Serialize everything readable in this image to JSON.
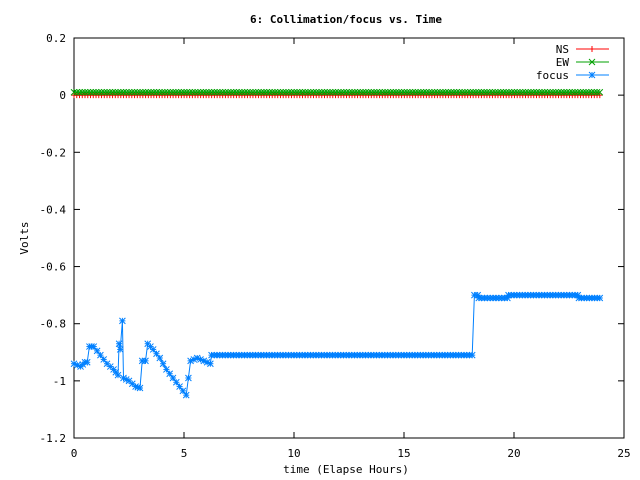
{
  "chart_data": {
    "type": "line",
    "title": "6: Collimation/focus vs. Time",
    "xlabel": "time (Elapse Hours)",
    "ylabel": "Volts",
    "xlim": [
      0,
      25
    ],
    "ylim": [
      -1.2,
      0.2
    ],
    "xticks": [
      0,
      5,
      10,
      15,
      20,
      25
    ],
    "yticks": [
      0.2,
      0,
      -0.2,
      -0.4,
      -0.6,
      -0.8,
      -1,
      -1.2
    ],
    "xtick_labels": [
      "0",
      "5",
      "10",
      "15",
      "20",
      "25"
    ],
    "ytick_labels": [
      "0.2",
      "0",
      "-0.2",
      "-0.4",
      "-0.6",
      "-0.8",
      "-1",
      "-1.2"
    ],
    "grid": false,
    "legend_position": "top-right",
    "series": [
      {
        "name": "NS",
        "color": "#ff0000",
        "marker": "plus",
        "points": [
          [
            0.0,
            0.0
          ],
          [
            23.9,
            0.0
          ]
        ]
      },
      {
        "name": "EW",
        "color": "#00a000",
        "marker": "cross",
        "points": [
          [
            0.0,
            0.01
          ],
          [
            23.9,
            0.01
          ]
        ]
      },
      {
        "name": "focus",
        "color": "#0080ff",
        "marker": "star",
        "points": [
          [
            0.0,
            -0.94
          ],
          [
            0.3,
            -0.95
          ],
          [
            0.5,
            -0.935
          ],
          [
            0.6,
            -0.935
          ],
          [
            0.7,
            -0.88
          ],
          [
            0.9,
            -0.88
          ],
          [
            1.2,
            -0.91
          ],
          [
            1.5,
            -0.94
          ],
          [
            1.8,
            -0.96
          ],
          [
            2.0,
            -0.98
          ],
          [
            2.05,
            -0.87
          ],
          [
            2.1,
            -0.89
          ],
          [
            2.2,
            -0.79
          ],
          [
            2.25,
            -0.99
          ],
          [
            2.5,
            -1.0
          ],
          [
            2.8,
            -1.02
          ],
          [
            3.0,
            -1.025
          ],
          [
            3.1,
            -0.93
          ],
          [
            3.25,
            -0.93
          ],
          [
            3.35,
            -0.87
          ],
          [
            3.6,
            -0.89
          ],
          [
            3.9,
            -0.92
          ],
          [
            4.2,
            -0.96
          ],
          [
            4.5,
            -0.99
          ],
          [
            4.8,
            -1.02
          ],
          [
            5.1,
            -1.05
          ],
          [
            5.3,
            -0.93
          ],
          [
            5.6,
            -0.92
          ],
          [
            5.9,
            -0.93
          ],
          [
            6.2,
            -0.94
          ],
          [
            6.25,
            -0.91
          ],
          [
            10.0,
            -0.91
          ],
          [
            15.0,
            -0.91
          ],
          [
            18.1,
            -0.91
          ],
          [
            18.2,
            -0.7
          ],
          [
            18.35,
            -0.7
          ],
          [
            18.4,
            -0.71
          ],
          [
            19.7,
            -0.71
          ],
          [
            19.75,
            -0.7
          ],
          [
            22.9,
            -0.7
          ],
          [
            22.95,
            -0.71
          ],
          [
            23.9,
            -0.71
          ]
        ]
      }
    ]
  }
}
